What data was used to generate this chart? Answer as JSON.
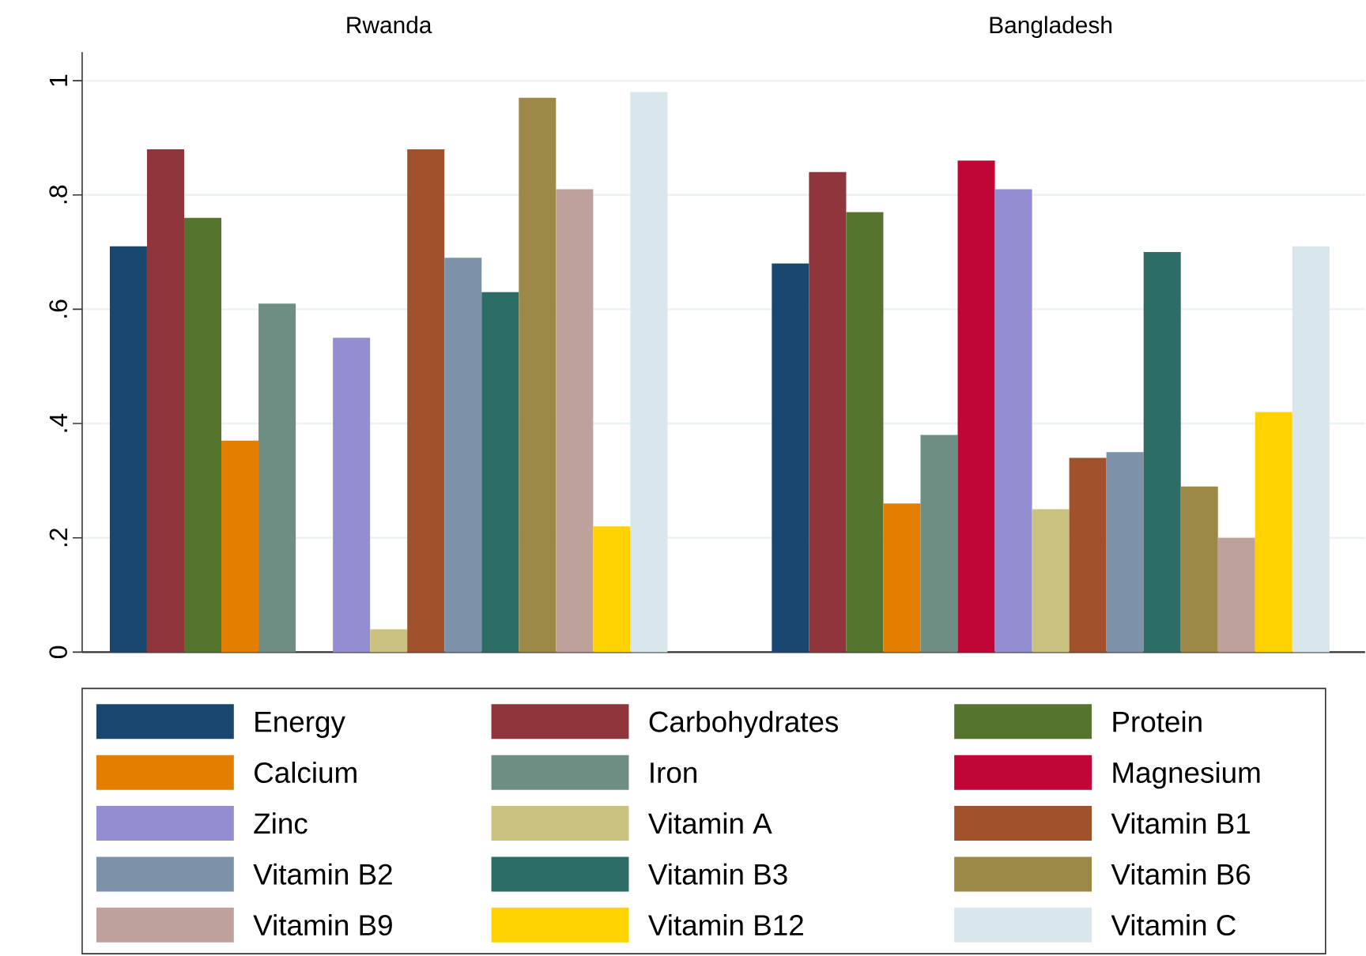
{
  "chart_data": {
    "type": "bar",
    "categories": [
      "Rwanda",
      "Bangladesh"
    ],
    "ylim": [
      0,
      1.05
    ],
    "yticks": [
      0,
      {
        "value": 0.2,
        "label": ".2"
      },
      {
        "value": 0.4,
        "label": ".4"
      },
      {
        "value": 0.6,
        "label": ".6"
      },
      {
        "value": 0.8,
        "label": ".8"
      },
      1
    ],
    "grid": "y",
    "legend": "bottom",
    "series": [
      {
        "name": "Energy",
        "color": "#1a476f",
        "values": [
          0.71,
          0.68
        ]
      },
      {
        "name": "Carbohydrates",
        "color": "#90353b",
        "values": [
          0.88,
          0.84
        ]
      },
      {
        "name": "Protein",
        "color": "#55752f",
        "values": [
          0.76,
          0.77
        ]
      },
      {
        "name": "Calcium",
        "color": "#e37e00",
        "values": [
          0.37,
          0.26
        ]
      },
      {
        "name": "Iron",
        "color": "#6e8e84",
        "values": [
          0.61,
          0.38
        ]
      },
      {
        "name": "Magnesium",
        "color": "#c10534",
        "values": [
          null,
          0.86
        ]
      },
      {
        "name": "Zinc",
        "color": "#938dd2",
        "values": [
          0.55,
          0.81
        ]
      },
      {
        "name": "Vitamin A",
        "color": "#cac27e",
        "values": [
          0.04,
          0.25
        ]
      },
      {
        "name": "Vitamin B1",
        "color": "#a0522d",
        "values": [
          0.88,
          0.34
        ]
      },
      {
        "name": "Vitamin B2",
        "color": "#7b92a8",
        "values": [
          0.69,
          0.35
        ]
      },
      {
        "name": "Vitamin B3",
        "color": "#2d6d66",
        "values": [
          0.63,
          0.7
        ]
      },
      {
        "name": "Vitamin B6",
        "color": "#9c8847",
        "values": [
          0.97,
          0.29
        ]
      },
      {
        "name": "Vitamin B9",
        "color": "#bfa19c",
        "values": [
          0.81,
          0.2
        ]
      },
      {
        "name": "Vitamin B12",
        "color": "#ffd200",
        "values": [
          0.22,
          0.42
        ]
      },
      {
        "name": "Vitamin C",
        "color": "#d9e6eb",
        "values": [
          0.98,
          0.71
        ]
      }
    ]
  }
}
